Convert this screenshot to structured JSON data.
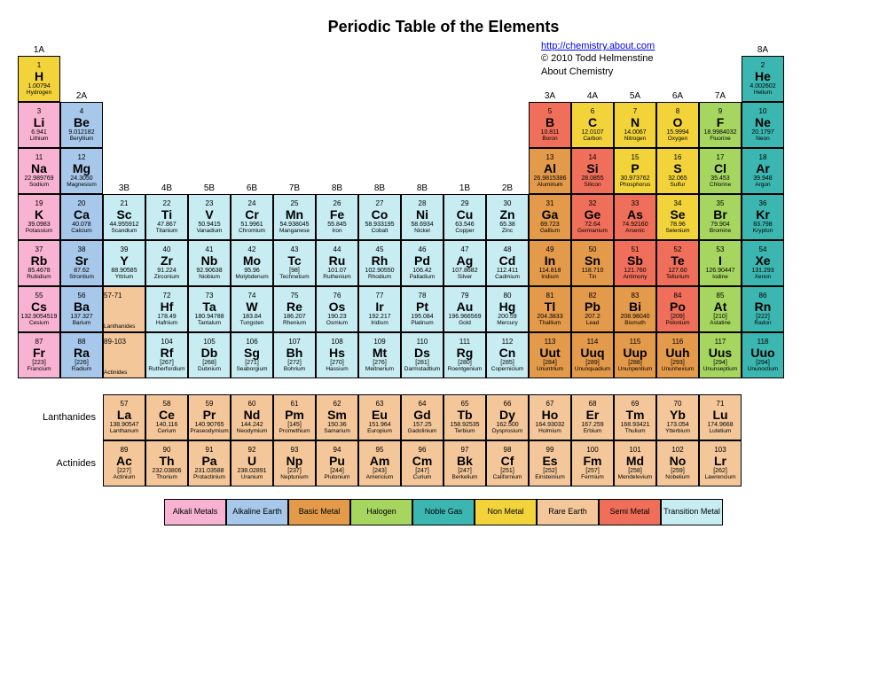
{
  "title": "Periodic Table of the Elements",
  "credits": {
    "url_text": "http://chemistry.about.com",
    "copyright": "© 2010 Todd Helmenstine",
    "site": "About Chemistry"
  },
  "colors": {
    "alkali": "#f7b3d1",
    "alkaline": "#a7c8ea",
    "basic": "#e39a4a",
    "halogen": "#a7d660",
    "noble": "#3cb6b0",
    "nonmetal": "#f2d43a",
    "rare": "#f4c79a",
    "semi": "#ef6f5a",
    "transition": "#c7ecf2",
    "range": "#f4c79a"
  },
  "group_labels": {
    "1": "1A",
    "2": "2A",
    "3": "3B",
    "4": "4B",
    "5": "5B",
    "6": "6B",
    "7": "7B",
    "8": "8B",
    "9": "8B",
    "10": "8B",
    "11": "1B",
    "12": "2B",
    "13": "3A",
    "14": "4A",
    "15": "5A",
    "16": "6A",
    "17": "7A",
    "18": "8A"
  },
  "series_labels": {
    "lanthanides": "Lanthanides",
    "actinides": "Actinides"
  },
  "lanth_range": "57-71",
  "act_range": "89-103",
  "legend": [
    {
      "key": "alkali",
      "label": "Alkali Metals"
    },
    {
      "key": "alkaline",
      "label": "Alkaline Earth"
    },
    {
      "key": "basic",
      "label": "Basic Metal"
    },
    {
      "key": "halogen",
      "label": "Halogen"
    },
    {
      "key": "noble",
      "label": "Noble Gas"
    },
    {
      "key": "nonmetal",
      "label": "Non Metal"
    },
    {
      "key": "rare",
      "label": "Rare Earth"
    },
    {
      "key": "semi",
      "label": "Semi Metal"
    },
    {
      "key": "transition",
      "label": "Transition Metal"
    }
  ],
  "elements": [
    {
      "n": 1,
      "s": "H",
      "m": "1.00794",
      "name": "Hydrogen",
      "g": 1,
      "p": 1,
      "c": "nonmetal"
    },
    {
      "n": 2,
      "s": "He",
      "m": "4.002602",
      "name": "Helium",
      "g": 18,
      "p": 1,
      "c": "noble"
    },
    {
      "n": 3,
      "s": "Li",
      "m": "6.941",
      "name": "Lithium",
      "g": 1,
      "p": 2,
      "c": "alkali"
    },
    {
      "n": 4,
      "s": "Be",
      "m": "9.012182",
      "name": "Beryllium",
      "g": 2,
      "p": 2,
      "c": "alkaline"
    },
    {
      "n": 5,
      "s": "B",
      "m": "10.811",
      "name": "Boron",
      "g": 13,
      "p": 2,
      "c": "semi"
    },
    {
      "n": 6,
      "s": "C",
      "m": "12.0107",
      "name": "Carbon",
      "g": 14,
      "p": 2,
      "c": "nonmetal"
    },
    {
      "n": 7,
      "s": "N",
      "m": "14.0067",
      "name": "Nitrogen",
      "g": 15,
      "p": 2,
      "c": "nonmetal"
    },
    {
      "n": 8,
      "s": "O",
      "m": "15.9994",
      "name": "Oxygen",
      "g": 16,
      "p": 2,
      "c": "nonmetal"
    },
    {
      "n": 9,
      "s": "F",
      "m": "18.9984032",
      "name": "Fluorine",
      "g": 17,
      "p": 2,
      "c": "halogen"
    },
    {
      "n": 10,
      "s": "Ne",
      "m": "20.1797",
      "name": "Neon",
      "g": 18,
      "p": 2,
      "c": "noble"
    },
    {
      "n": 11,
      "s": "Na",
      "m": "22.989769",
      "name": "Sodium",
      "g": 1,
      "p": 3,
      "c": "alkali"
    },
    {
      "n": 12,
      "s": "Mg",
      "m": "24.3050",
      "name": "Magnesium",
      "g": 2,
      "p": 3,
      "c": "alkaline"
    },
    {
      "n": 13,
      "s": "Al",
      "m": "26.9815386",
      "name": "Aluminum",
      "g": 13,
      "p": 3,
      "c": "basic"
    },
    {
      "n": 14,
      "s": "Si",
      "m": "28.0855",
      "name": "Silicon",
      "g": 14,
      "p": 3,
      "c": "semi"
    },
    {
      "n": 15,
      "s": "P",
      "m": "30.973762",
      "name": "Phosphorus",
      "g": 15,
      "p": 3,
      "c": "nonmetal"
    },
    {
      "n": 16,
      "s": "S",
      "m": "32.065",
      "name": "Sulfur",
      "g": 16,
      "p": 3,
      "c": "nonmetal"
    },
    {
      "n": 17,
      "s": "Cl",
      "m": "35.453",
      "name": "Chlorine",
      "g": 17,
      "p": 3,
      "c": "halogen"
    },
    {
      "n": 18,
      "s": "Ar",
      "m": "39.948",
      "name": "Argon",
      "g": 18,
      "p": 3,
      "c": "noble"
    },
    {
      "n": 19,
      "s": "K",
      "m": "39.0983",
      "name": "Potassium",
      "g": 1,
      "p": 4,
      "c": "alkali"
    },
    {
      "n": 20,
      "s": "Ca",
      "m": "40.078",
      "name": "Calcium",
      "g": 2,
      "p": 4,
      "c": "alkaline"
    },
    {
      "n": 21,
      "s": "Sc",
      "m": "44.955912",
      "name": "Scandium",
      "g": 3,
      "p": 4,
      "c": "transition"
    },
    {
      "n": 22,
      "s": "Ti",
      "m": "47.867",
      "name": "Titanium",
      "g": 4,
      "p": 4,
      "c": "transition"
    },
    {
      "n": 23,
      "s": "V",
      "m": "50.9415",
      "name": "Vanadium",
      "g": 5,
      "p": 4,
      "c": "transition"
    },
    {
      "n": 24,
      "s": "Cr",
      "m": "51.9961",
      "name": "Chromium",
      "g": 6,
      "p": 4,
      "c": "transition"
    },
    {
      "n": 25,
      "s": "Mn",
      "m": "54.938045",
      "name": "Manganese",
      "g": 7,
      "p": 4,
      "c": "transition"
    },
    {
      "n": 26,
      "s": "Fe",
      "m": "55.845",
      "name": "Iron",
      "g": 8,
      "p": 4,
      "c": "transition"
    },
    {
      "n": 27,
      "s": "Co",
      "m": "58.933195",
      "name": "Cobalt",
      "g": 9,
      "p": 4,
      "c": "transition"
    },
    {
      "n": 28,
      "s": "Ni",
      "m": "58.6934",
      "name": "Nickel",
      "g": 10,
      "p": 4,
      "c": "transition"
    },
    {
      "n": 29,
      "s": "Cu",
      "m": "63.546",
      "name": "Copper",
      "g": 11,
      "p": 4,
      "c": "transition"
    },
    {
      "n": 30,
      "s": "Zn",
      "m": "65.38",
      "name": "Zinc",
      "g": 12,
      "p": 4,
      "c": "transition"
    },
    {
      "n": 31,
      "s": "Ga",
      "m": "69.723",
      "name": "Gallium",
      "g": 13,
      "p": 4,
      "c": "basic"
    },
    {
      "n": 32,
      "s": "Ge",
      "m": "72.64",
      "name": "Germanium",
      "g": 14,
      "p": 4,
      "c": "semi"
    },
    {
      "n": 33,
      "s": "As",
      "m": "74.92160",
      "name": "Arsenic",
      "g": 15,
      "p": 4,
      "c": "semi"
    },
    {
      "n": 34,
      "s": "Se",
      "m": "78.96",
      "name": "Selenium",
      "g": 16,
      "p": 4,
      "c": "nonmetal"
    },
    {
      "n": 35,
      "s": "Br",
      "m": "79.904",
      "name": "Bromine",
      "g": 17,
      "p": 4,
      "c": "halogen"
    },
    {
      "n": 36,
      "s": "Kr",
      "m": "83.798",
      "name": "Krypton",
      "g": 18,
      "p": 4,
      "c": "noble"
    },
    {
      "n": 37,
      "s": "Rb",
      "m": "85.4678",
      "name": "Rubidium",
      "g": 1,
      "p": 5,
      "c": "alkali"
    },
    {
      "n": 38,
      "s": "Sr",
      "m": "87.62",
      "name": "Strontium",
      "g": 2,
      "p": 5,
      "c": "alkaline"
    },
    {
      "n": 39,
      "s": "Y",
      "m": "88.90585",
      "name": "Yttrium",
      "g": 3,
      "p": 5,
      "c": "transition"
    },
    {
      "n": 40,
      "s": "Zr",
      "m": "91.224",
      "name": "Zirconium",
      "g": 4,
      "p": 5,
      "c": "transition"
    },
    {
      "n": 41,
      "s": "Nb",
      "m": "92.90638",
      "name": "Niobium",
      "g": 5,
      "p": 5,
      "c": "transition"
    },
    {
      "n": 42,
      "s": "Mo",
      "m": "95.96",
      "name": "Molybdenum",
      "g": 6,
      "p": 5,
      "c": "transition"
    },
    {
      "n": 43,
      "s": "Tc",
      "m": "[98]",
      "name": "Technetium",
      "g": 7,
      "p": 5,
      "c": "transition"
    },
    {
      "n": 44,
      "s": "Ru",
      "m": "101.07",
      "name": "Ruthenium",
      "g": 8,
      "p": 5,
      "c": "transition"
    },
    {
      "n": 45,
      "s": "Rh",
      "m": "102.90550",
      "name": "Rhodium",
      "g": 9,
      "p": 5,
      "c": "transition"
    },
    {
      "n": 46,
      "s": "Pd",
      "m": "106.42",
      "name": "Palladium",
      "g": 10,
      "p": 5,
      "c": "transition"
    },
    {
      "n": 47,
      "s": "Ag",
      "m": "107.8682",
      "name": "Silver",
      "g": 11,
      "p": 5,
      "c": "transition"
    },
    {
      "n": 48,
      "s": "Cd",
      "m": "112.411",
      "name": "Cadmium",
      "g": 12,
      "p": 5,
      "c": "transition"
    },
    {
      "n": 49,
      "s": "In",
      "m": "114.818",
      "name": "Indium",
      "g": 13,
      "p": 5,
      "c": "basic"
    },
    {
      "n": 50,
      "s": "Sn",
      "m": "118.710",
      "name": "Tin",
      "g": 14,
      "p": 5,
      "c": "basic"
    },
    {
      "n": 51,
      "s": "Sb",
      "m": "121.760",
      "name": "Antimony",
      "g": 15,
      "p": 5,
      "c": "semi"
    },
    {
      "n": 52,
      "s": "Te",
      "m": "127.60",
      "name": "Tellurium",
      "g": 16,
      "p": 5,
      "c": "semi"
    },
    {
      "n": 53,
      "s": "I",
      "m": "126.90447",
      "name": "Iodine",
      "g": 17,
      "p": 5,
      "c": "halogen"
    },
    {
      "n": 54,
      "s": "Xe",
      "m": "131.293",
      "name": "Xenon",
      "g": 18,
      "p": 5,
      "c": "noble"
    },
    {
      "n": 55,
      "s": "Cs",
      "m": "132.9054519",
      "name": "Cesium",
      "g": 1,
      "p": 6,
      "c": "alkali"
    },
    {
      "n": 56,
      "s": "Ba",
      "m": "137.327",
      "name": "Barium",
      "g": 2,
      "p": 6,
      "c": "alkaline"
    },
    {
      "n": 72,
      "s": "Hf",
      "m": "178.49",
      "name": "Hafnium",
      "g": 4,
      "p": 6,
      "c": "transition"
    },
    {
      "n": 73,
      "s": "Ta",
      "m": "180.94788",
      "name": "Tantalum",
      "g": 5,
      "p": 6,
      "c": "transition"
    },
    {
      "n": 74,
      "s": "W",
      "m": "183.84",
      "name": "Tungsten",
      "g": 6,
      "p": 6,
      "c": "transition"
    },
    {
      "n": 75,
      "s": "Re",
      "m": "186.207",
      "name": "Rhenium",
      "g": 7,
      "p": 6,
      "c": "transition"
    },
    {
      "n": 76,
      "s": "Os",
      "m": "190.23",
      "name": "Osmium",
      "g": 8,
      "p": 6,
      "c": "transition"
    },
    {
      "n": 77,
      "s": "Ir",
      "m": "192.217",
      "name": "Iridium",
      "g": 9,
      "p": 6,
      "c": "transition"
    },
    {
      "n": 78,
      "s": "Pt",
      "m": "195.084",
      "name": "Platinum",
      "g": 10,
      "p": 6,
      "c": "transition"
    },
    {
      "n": 79,
      "s": "Au",
      "m": "196.966569",
      "name": "Gold",
      "g": 11,
      "p": 6,
      "c": "transition"
    },
    {
      "n": 80,
      "s": "Hg",
      "m": "200.59",
      "name": "Mercury",
      "g": 12,
      "p": 6,
      "c": "transition"
    },
    {
      "n": 81,
      "s": "Tl",
      "m": "204.3833",
      "name": "Thallium",
      "g": 13,
      "p": 6,
      "c": "basic"
    },
    {
      "n": 82,
      "s": "Pb",
      "m": "207.2",
      "name": "Lead",
      "g": 14,
      "p": 6,
      "c": "basic"
    },
    {
      "n": 83,
      "s": "Bi",
      "m": "208.98040",
      "name": "Bismuth",
      "g": 15,
      "p": 6,
      "c": "basic"
    },
    {
      "n": 84,
      "s": "Po",
      "m": "[209]",
      "name": "Polonium",
      "g": 16,
      "p": 6,
      "c": "semi"
    },
    {
      "n": 85,
      "s": "At",
      "m": "[210]",
      "name": "Astatine",
      "g": 17,
      "p": 6,
      "c": "halogen"
    },
    {
      "n": 86,
      "s": "Rn",
      "m": "[222]",
      "name": "Radon",
      "g": 18,
      "p": 6,
      "c": "noble"
    },
    {
      "n": 87,
      "s": "Fr",
      "m": "[223]",
      "name": "Francium",
      "g": 1,
      "p": 7,
      "c": "alkali"
    },
    {
      "n": 88,
      "s": "Ra",
      "m": "[226]",
      "name": "Radium",
      "g": 2,
      "p": 7,
      "c": "alkaline"
    },
    {
      "n": 104,
      "s": "Rf",
      "m": "[267]",
      "name": "Rutherfordium",
      "g": 4,
      "p": 7,
      "c": "transition"
    },
    {
      "n": 105,
      "s": "Db",
      "m": "[268]",
      "name": "Dubnium",
      "g": 5,
      "p": 7,
      "c": "transition"
    },
    {
      "n": 106,
      "s": "Sg",
      "m": "[271]",
      "name": "Seaborgium",
      "g": 6,
      "p": 7,
      "c": "transition"
    },
    {
      "n": 107,
      "s": "Bh",
      "m": "[272]",
      "name": "Bohrium",
      "g": 7,
      "p": 7,
      "c": "transition"
    },
    {
      "n": 108,
      "s": "Hs",
      "m": "[270]",
      "name": "Hassium",
      "g": 8,
      "p": 7,
      "c": "transition"
    },
    {
      "n": 109,
      "s": "Mt",
      "m": "[276]",
      "name": "Meitnerium",
      "g": 9,
      "p": 7,
      "c": "transition"
    },
    {
      "n": 110,
      "s": "Ds",
      "m": "[281]",
      "name": "Darmstadtium",
      "g": 10,
      "p": 7,
      "c": "transition"
    },
    {
      "n": 111,
      "s": "Rg",
      "m": "[280]",
      "name": "Roentgenium",
      "g": 11,
      "p": 7,
      "c": "transition"
    },
    {
      "n": 112,
      "s": "Cn",
      "m": "[285]",
      "name": "Copernicium",
      "g": 12,
      "p": 7,
      "c": "transition"
    },
    {
      "n": 113,
      "s": "Uut",
      "m": "[284]",
      "name": "Ununtrium",
      "g": 13,
      "p": 7,
      "c": "basic"
    },
    {
      "n": 114,
      "s": "Uuq",
      "m": "[289]",
      "name": "Ununquadium",
      "g": 14,
      "p": 7,
      "c": "basic"
    },
    {
      "n": 115,
      "s": "Uup",
      "m": "[288]",
      "name": "Ununpentium",
      "g": 15,
      "p": 7,
      "c": "basic"
    },
    {
      "n": 116,
      "s": "Uuh",
      "m": "[293]",
      "name": "Ununhexium",
      "g": 16,
      "p": 7,
      "c": "basic"
    },
    {
      "n": 117,
      "s": "Uus",
      "m": "[294]",
      "name": "Ununseptium",
      "g": 17,
      "p": 7,
      "c": "halogen"
    },
    {
      "n": 118,
      "s": "Uuo",
      "m": "[294]",
      "name": "Ununoctium",
      "g": 18,
      "p": 7,
      "c": "noble"
    },
    {
      "n": 57,
      "s": "La",
      "m": "138.90547",
      "name": "Lanthanum",
      "g": 3,
      "p": 8,
      "c": "rare"
    },
    {
      "n": 58,
      "s": "Ce",
      "m": "140.116",
      "name": "Cerium",
      "g": 4,
      "p": 8,
      "c": "rare"
    },
    {
      "n": 59,
      "s": "Pr",
      "m": "140.90765",
      "name": "Praseodymium",
      "g": 5,
      "p": 8,
      "c": "rare"
    },
    {
      "n": 60,
      "s": "Nd",
      "m": "144.242",
      "name": "Neodymium",
      "g": 6,
      "p": 8,
      "c": "rare"
    },
    {
      "n": 61,
      "s": "Pm",
      "m": "[145]",
      "name": "Promethium",
      "g": 7,
      "p": 8,
      "c": "rare"
    },
    {
      "n": 62,
      "s": "Sm",
      "m": "150.36",
      "name": "Samarium",
      "g": 8,
      "p": 8,
      "c": "rare"
    },
    {
      "n": 63,
      "s": "Eu",
      "m": "151.964",
      "name": "Europium",
      "g": 9,
      "p": 8,
      "c": "rare"
    },
    {
      "n": 64,
      "s": "Gd",
      "m": "157.25",
      "name": "Gadolinium",
      "g": 10,
      "p": 8,
      "c": "rare"
    },
    {
      "n": 65,
      "s": "Tb",
      "m": "158.92535",
      "name": "Terbium",
      "g": 11,
      "p": 8,
      "c": "rare"
    },
    {
      "n": 66,
      "s": "Dy",
      "m": "162.500",
      "name": "Dysprosium",
      "g": 12,
      "p": 8,
      "c": "rare"
    },
    {
      "n": 67,
      "s": "Ho",
      "m": "164.93032",
      "name": "Holmium",
      "g": 13,
      "p": 8,
      "c": "rare"
    },
    {
      "n": 68,
      "s": "Er",
      "m": "167.259",
      "name": "Erbium",
      "g": 14,
      "p": 8,
      "c": "rare"
    },
    {
      "n": 69,
      "s": "Tm",
      "m": "168.93421",
      "name": "Thulium",
      "g": 15,
      "p": 8,
      "c": "rare"
    },
    {
      "n": 70,
      "s": "Yb",
      "m": "173.054",
      "name": "Ytterbium",
      "g": 16,
      "p": 8,
      "c": "rare"
    },
    {
      "n": 71,
      "s": "Lu",
      "m": "174.9668",
      "name": "Lutetium",
      "g": 17,
      "p": 8,
      "c": "rare"
    },
    {
      "n": 89,
      "s": "Ac",
      "m": "[227]",
      "name": "Actinium",
      "g": 3,
      "p": 9,
      "c": "rare"
    },
    {
      "n": 90,
      "s": "Th",
      "m": "232.03806",
      "name": "Thorium",
      "g": 4,
      "p": 9,
      "c": "rare"
    },
    {
      "n": 91,
      "s": "Pa",
      "m": "231.03588",
      "name": "Protactinium",
      "g": 5,
      "p": 9,
      "c": "rare"
    },
    {
      "n": 92,
      "s": "U",
      "m": "238.02891",
      "name": "Uranium",
      "g": 6,
      "p": 9,
      "c": "rare"
    },
    {
      "n": 93,
      "s": "Np",
      "m": "[237]",
      "name": "Neptunium",
      "g": 7,
      "p": 9,
      "c": "rare"
    },
    {
      "n": 94,
      "s": "Pu",
      "m": "[244]",
      "name": "Plutonium",
      "g": 8,
      "p": 9,
      "c": "rare"
    },
    {
      "n": 95,
      "s": "Am",
      "m": "[243]",
      "name": "Americium",
      "g": 9,
      "p": 9,
      "c": "rare"
    },
    {
      "n": 96,
      "s": "Cm",
      "m": "[247]",
      "name": "Curium",
      "g": 10,
      "p": 9,
      "c": "rare"
    },
    {
      "n": 97,
      "s": "Bk",
      "m": "[247]",
      "name": "Berkelium",
      "g": 11,
      "p": 9,
      "c": "rare"
    },
    {
      "n": 98,
      "s": "Cf",
      "m": "[251]",
      "name": "Californium",
      "g": 12,
      "p": 9,
      "c": "rare"
    },
    {
      "n": 99,
      "s": "Es",
      "m": "[252]",
      "name": "Einsteinium",
      "g": 13,
      "p": 9,
      "c": "rare"
    },
    {
      "n": 100,
      "s": "Fm",
      "m": "[257]",
      "name": "Fermium",
      "g": 14,
      "p": 9,
      "c": "rare"
    },
    {
      "n": 101,
      "s": "Md",
      "m": "[258]",
      "name": "Mendelevium",
      "g": 15,
      "p": 9,
      "c": "rare"
    },
    {
      "n": 102,
      "s": "No",
      "m": "[259]",
      "name": "Nobelium",
      "g": 16,
      "p": 9,
      "c": "rare"
    },
    {
      "n": 103,
      "s": "Lr",
      "m": "[262]",
      "name": "Lawrencium",
      "g": 17,
      "p": 9,
      "c": "rare"
    }
  ]
}
